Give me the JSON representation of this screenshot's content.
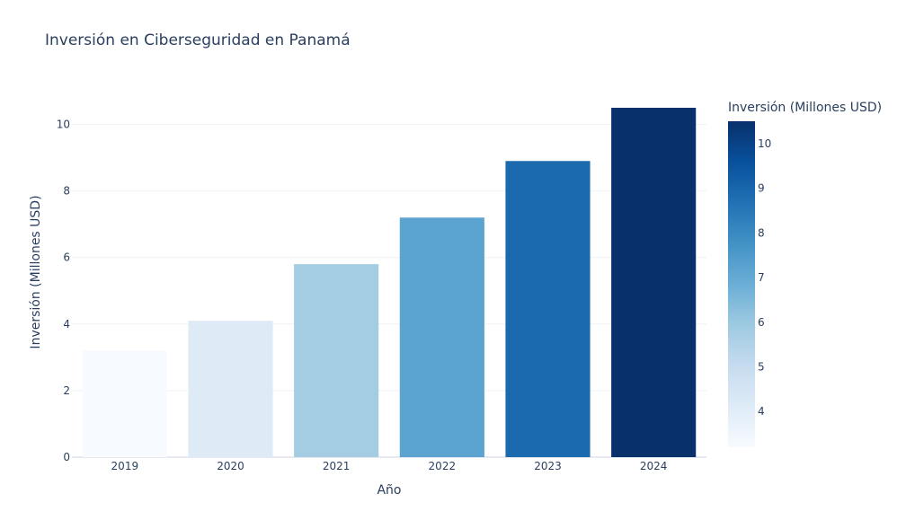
{
  "chart_data": {
    "type": "bar",
    "title": "Inversión en Ciberseguridad en Panamá",
    "xlabel": "Año",
    "ylabel": "Inversión (Millones USD)",
    "categories": [
      "2019",
      "2020",
      "2021",
      "2022",
      "2023",
      "2024"
    ],
    "values": [
      3.2,
      4.1,
      5.8,
      7.2,
      8.9,
      10.5
    ],
    "ylim": [
      0,
      10.5
    ],
    "y_ticks": [
      "0",
      "2",
      "4",
      "6",
      "8",
      "10"
    ],
    "grid": true,
    "colorbar": {
      "title": "Inversión (Millones USD)",
      "range": [
        3.2,
        10.5
      ],
      "ticks": [
        "4",
        "5",
        "6",
        "7",
        "8",
        "9",
        "10"
      ],
      "colorscale": [
        "#f7fbff",
        "#deebf7",
        "#c6dbef",
        "#9ecae1",
        "#6baed6",
        "#4292c6",
        "#2171b5",
        "#08519c",
        "#08306b"
      ]
    },
    "colors": {
      "text": "#2a3f5f",
      "grid": "#eef1f6",
      "axis": "#e6eaf0"
    }
  }
}
